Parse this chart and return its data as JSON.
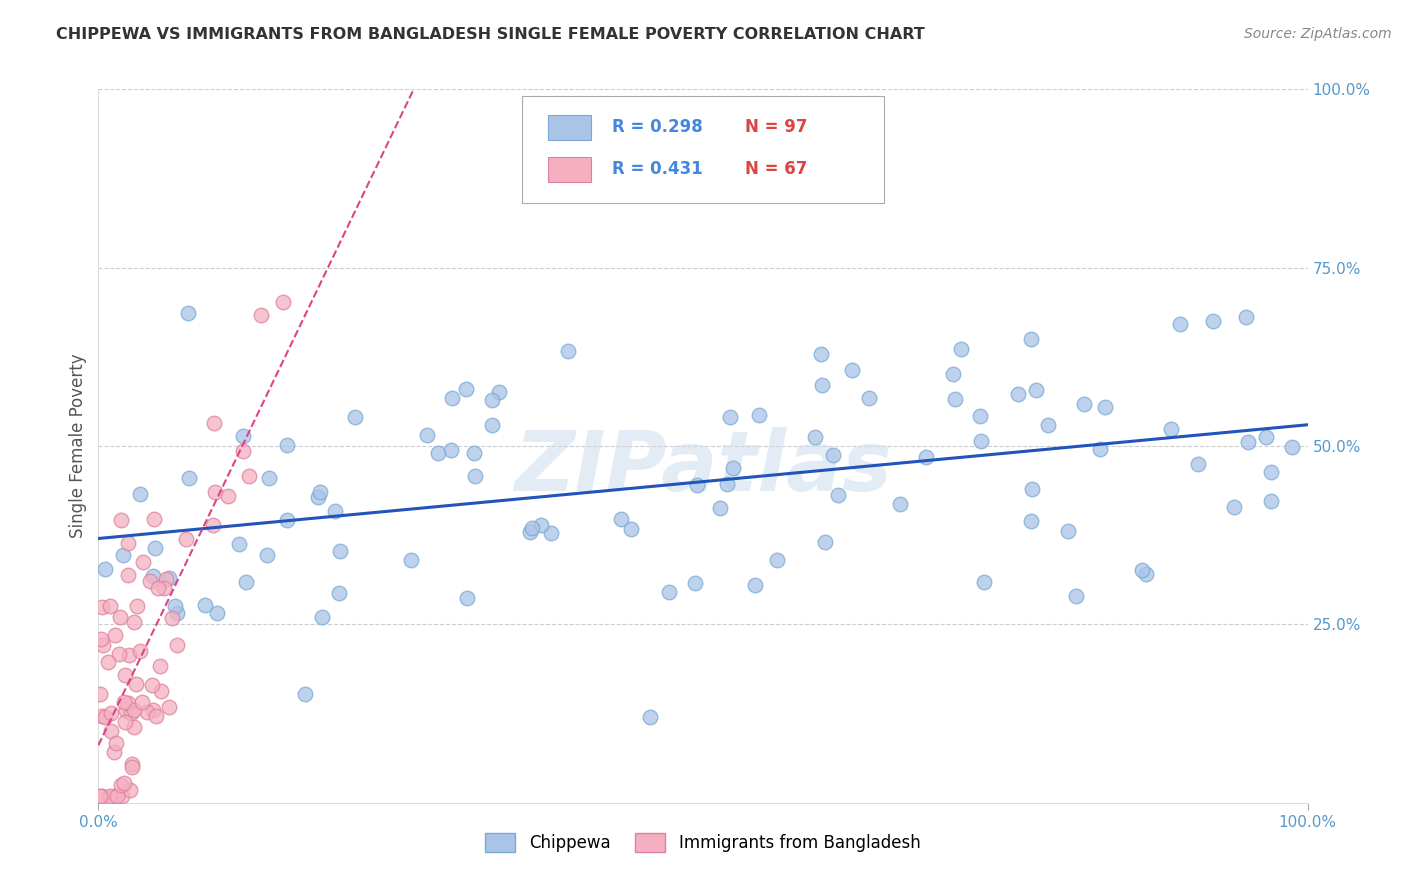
{
  "title": "CHIPPEWA VS IMMIGRANTS FROM BANGLADESH SINGLE FEMALE POVERTY CORRELATION CHART",
  "source_text": "Source: ZipAtlas.com",
  "ylabel": "Single Female Poverty",
  "xlim": [
    0.0,
    1.0
  ],
  "ylim": [
    0.0,
    1.0
  ],
  "y_tick_values": [
    0.25,
    0.5,
    0.75,
    1.0
  ],
  "grid_color": "#cccccc",
  "background_color": "#ffffff",
  "watermark_text": "ZIPatlas",
  "legend_r1": "R = 0.298",
  "legend_n1": "N = 97",
  "legend_r2": "R = 0.431",
  "legend_n2": "N = 67",
  "chippewa_color": "#aac4e8",
  "chippewa_edge_color": "#7aaad4",
  "bangladesh_color": "#f4b0c0",
  "bangladesh_edge_color": "#e080a0",
  "chippewa_line_color": "#2255bb",
  "bangladesh_line_color": "#dd4488",
  "legend_color_blue": "#4488dd",
  "legend_color_red": "#dd4444",
  "title_color": "#333333",
  "ylabel_color": "#555555",
  "tick_color": "#5599cc"
}
